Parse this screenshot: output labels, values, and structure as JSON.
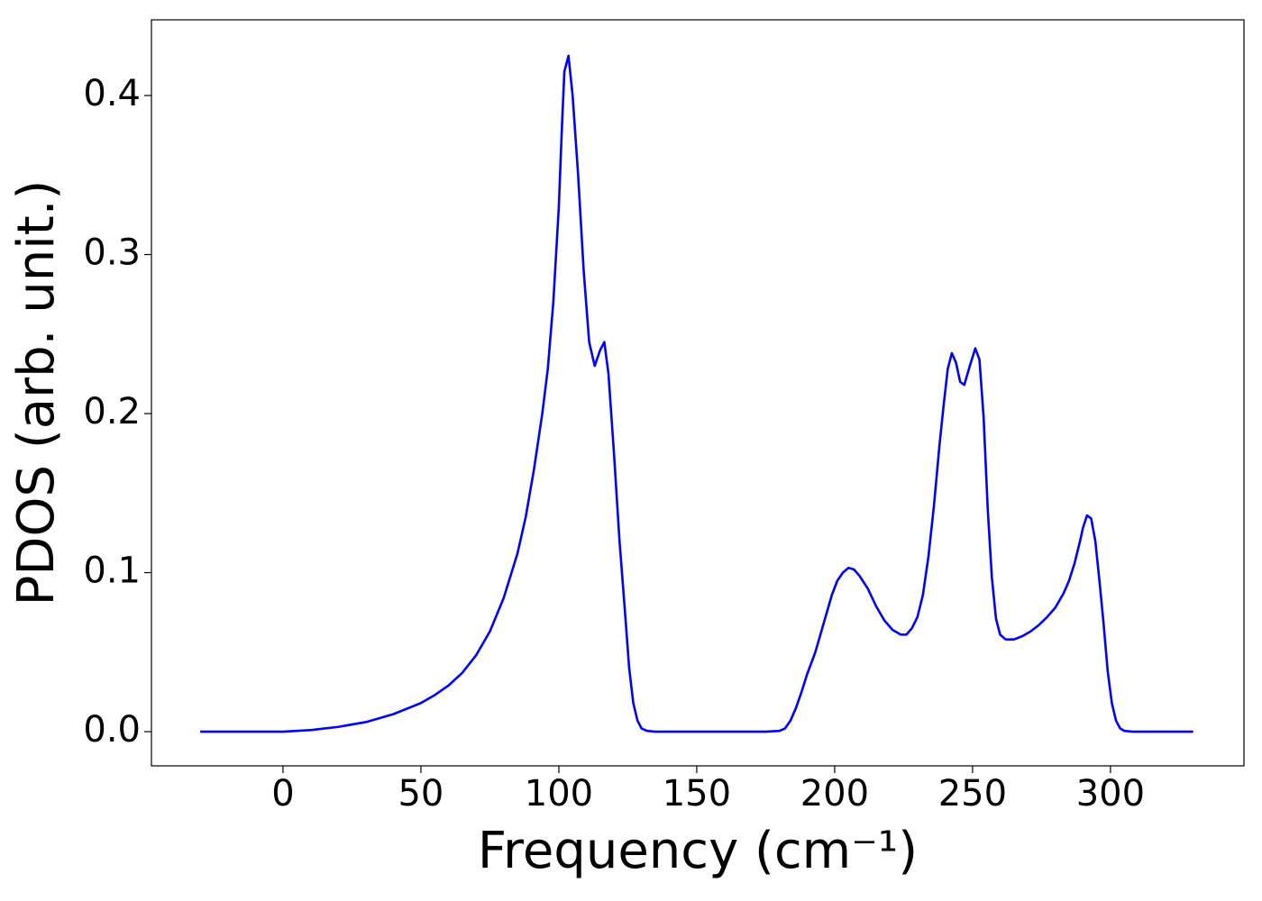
{
  "chart_data": {
    "type": "line",
    "xlabel": "Frequency (cm⁻¹)",
    "ylabel": "PDOS (arb. unit.)",
    "color": "#0000ff",
    "x": [
      -30,
      -20,
      -10,
      0,
      10,
      20,
      30,
      40,
      50,
      55,
      60,
      65,
      70,
      75,
      80,
      85,
      88,
      91,
      94,
      96,
      98,
      100,
      101,
      102,
      103.5,
      105,
      107,
      109,
      111,
      113,
      115,
      116.5,
      118,
      120,
      122,
      124,
      125.5,
      127,
      128.5,
      130,
      132,
      135,
      150,
      175,
      180,
      182,
      184,
      186,
      188,
      190,
      193,
      196,
      199,
      201,
      203,
      205,
      207,
      209,
      212,
      215,
      218,
      221,
      224,
      226,
      228,
      230,
      232,
      234,
      236,
      238,
      239.5,
      241,
      242.5,
      244,
      245.5,
      247,
      249,
      251,
      252.5,
      254,
      255.5,
      257,
      258.5,
      260,
      262,
      265,
      268,
      271,
      274,
      277,
      280,
      283,
      285,
      287,
      289,
      290,
      291.5,
      293,
      294.5,
      296,
      297.5,
      299,
      300.5,
      302,
      303.5,
      305,
      308,
      330
    ],
    "values": [
      0,
      0,
      0,
      0,
      0.001,
      0.003,
      0.006,
      0.011,
      0.018,
      0.023,
      0.029,
      0.037,
      0.048,
      0.063,
      0.084,
      0.112,
      0.135,
      0.165,
      0.2,
      0.228,
      0.27,
      0.33,
      0.375,
      0.415,
      0.425,
      0.4,
      0.35,
      0.29,
      0.245,
      0.23,
      0.24,
      0.245,
      0.225,
      0.175,
      0.12,
      0.075,
      0.04,
      0.018,
      0.007,
      0.002,
      0.0005,
      0,
      0,
      0,
      0.0005,
      0.002,
      0.007,
      0.015,
      0.025,
      0.036,
      0.05,
      0.068,
      0.086,
      0.095,
      0.1,
      0.103,
      0.102,
      0.098,
      0.09,
      0.079,
      0.07,
      0.064,
      0.061,
      0.061,
      0.065,
      0.072,
      0.086,
      0.11,
      0.142,
      0.18,
      0.205,
      0.228,
      0.238,
      0.232,
      0.22,
      0.218,
      0.23,
      0.241,
      0.234,
      0.198,
      0.14,
      0.097,
      0.071,
      0.061,
      0.058,
      0.058,
      0.06,
      0.063,
      0.067,
      0.072,
      0.078,
      0.087,
      0.095,
      0.106,
      0.12,
      0.128,
      0.136,
      0.134,
      0.12,
      0.095,
      0.068,
      0.038,
      0.018,
      0.007,
      0.002,
      0.0005,
      0,
      0
    ],
    "xlim": [
      -47.7,
      348.4
    ],
    "ylim": [
      -0.0215,
      0.4476
    ],
    "xticks": [
      0,
      50,
      100,
      150,
      200,
      250,
      300
    ],
    "yticks": [
      {
        "value": 0,
        "label": "0.0"
      },
      0.1,
      0.2,
      0.3,
      0.4
    ]
  }
}
